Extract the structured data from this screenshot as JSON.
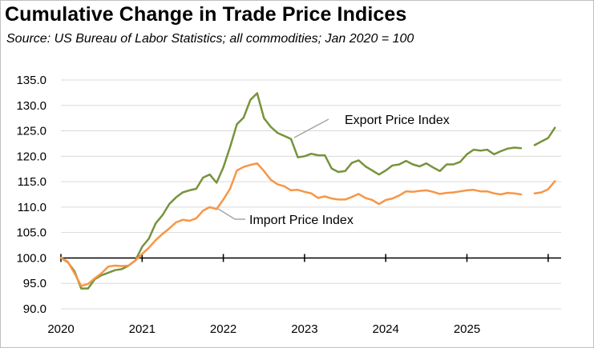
{
  "chart_data": {
    "type": "line",
    "title": "Cumulative Change in Trade Price Indices",
    "subtitle": "Source:  US Bureau of Labor Statistics; all commodities; Jan 2020 = 100",
    "xlabel": "",
    "ylabel": "",
    "ylim": [
      90,
      135
    ],
    "yticks": [
      "90.0",
      "95.0",
      "100.0",
      "105.0",
      "110.0",
      "115.0",
      "120.0",
      "125.0",
      "130.0",
      "135.0"
    ],
    "xticks": [
      "2020",
      "2021",
      "2022",
      "2023",
      "2024",
      "2025"
    ],
    "grid": true,
    "legend": "none",
    "annotations": [
      "Export Price Index",
      "Import Price Index"
    ],
    "series": [
      {
        "name": "Export Price Index",
        "color": "#77933c",
        "values": [
          100.0,
          99.2,
          97.4,
          94.0,
          94.0,
          95.8,
          96.6,
          97.1,
          97.6,
          97.8,
          98.5,
          99.5,
          102.2,
          103.8,
          106.8,
          108.4,
          110.6,
          111.9,
          112.9,
          113.3,
          113.6,
          115.8,
          116.4,
          114.8,
          117.8,
          121.8,
          126.3,
          127.6,
          131.1,
          132.4,
          127.5,
          125.8,
          124.6,
          124.0,
          123.4,
          119.8,
          120.0,
          120.5,
          120.2,
          120.2,
          117.6,
          116.9,
          117.1,
          118.7,
          119.2,
          118.0,
          117.2,
          116.4,
          117.2,
          118.2,
          118.4,
          119.1,
          118.4,
          118.0,
          118.6,
          117.8,
          117.1,
          118.4,
          118.4,
          118.9,
          120.4,
          121.3,
          121.1,
          121.3,
          120.4,
          121.0,
          121.5,
          121.7,
          121.6,
          null,
          122.2,
          122.9,
          123.6,
          125.6
        ]
      },
      {
        "name": "Import Price Index",
        "color": "#f79646",
        "values": [
          100.0,
          99.3,
          97.0,
          94.5,
          94.9,
          96.0,
          97.0,
          98.3,
          98.5,
          98.4,
          98.5,
          99.5,
          100.8,
          102.0,
          103.5,
          104.7,
          105.8,
          107.0,
          107.5,
          107.3,
          107.8,
          109.3,
          110.0,
          109.6,
          111.5,
          113.6,
          117.2,
          117.9,
          118.3,
          118.6,
          117.1,
          115.4,
          114.5,
          114.1,
          113.3,
          113.4,
          113.0,
          112.7,
          111.8,
          112.1,
          111.7,
          111.5,
          111.5,
          112.0,
          112.6,
          111.8,
          111.4,
          110.6,
          111.4,
          111.7,
          112.3,
          113.1,
          113.0,
          113.2,
          113.3,
          113.0,
          112.6,
          112.8,
          112.9,
          113.1,
          113.3,
          113.4,
          113.1,
          113.1,
          112.7,
          112.5,
          112.8,
          112.7,
          112.5,
          null,
          112.7,
          112.9,
          113.5,
          115.1
        ]
      }
    ]
  }
}
